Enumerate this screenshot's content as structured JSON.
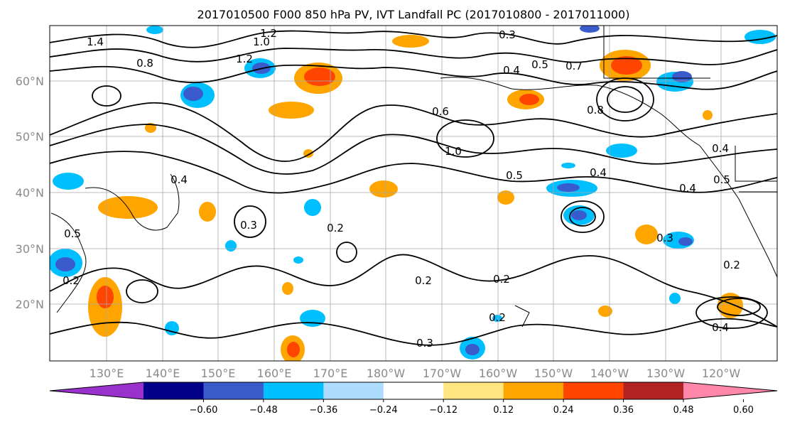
{
  "title": "2017010500 F000 850 hPa PV, IVT Landfall PC (2017010800 - 2017011000)",
  "map": {
    "lat_labels": [
      "60°N",
      "50°N",
      "40°N",
      "30°N",
      "20°N"
    ],
    "lon_labels": [
      "130°E",
      "140°E",
      "150°E",
      "160°E",
      "170°E",
      "180°W",
      "170°W",
      "160°W",
      "150°W",
      "140°W",
      "130°W",
      "120°W"
    ],
    "contour_labels": [
      "1.4",
      "0.8",
      "1.0",
      "1.2",
      "1.2",
      "0.3",
      "0.4",
      "0.5",
      "0.7",
      "0.6",
      "0.8",
      "1.0",
      "0.5",
      "0.4",
      "0.4",
      "0.4",
      "0.5",
      "0.3",
      "0.2",
      "0.2",
      "0.2",
      "0.2",
      "0.3",
      "0.5",
      "0.4",
      "0.2",
      "0.2",
      "0.3",
      "0.4"
    ],
    "colors": {
      "negative": [
        "#9932cc",
        "#00008b",
        "#3a5bcc",
        "#00bfff",
        "#aedcff"
      ],
      "neutral": "#ffffff",
      "positive": [
        "#ffe680",
        "#ffa500",
        "#ff4500",
        "#b22222",
        "#ff88aa"
      ]
    }
  },
  "colorbar": {
    "ticks": [
      "−0.60",
      "−0.48",
      "−0.36",
      "−0.24",
      "−0.12",
      "0.12",
      "0.24",
      "0.36",
      "0.48",
      "0.60"
    ],
    "colors": [
      "#9932cc",
      "#00008b",
      "#3a5bcc",
      "#00bfff",
      "#aedcff",
      "#ffffff",
      "#ffe680",
      "#ffa500",
      "#ff4500",
      "#b22222",
      "#ff88aa"
    ]
  }
}
